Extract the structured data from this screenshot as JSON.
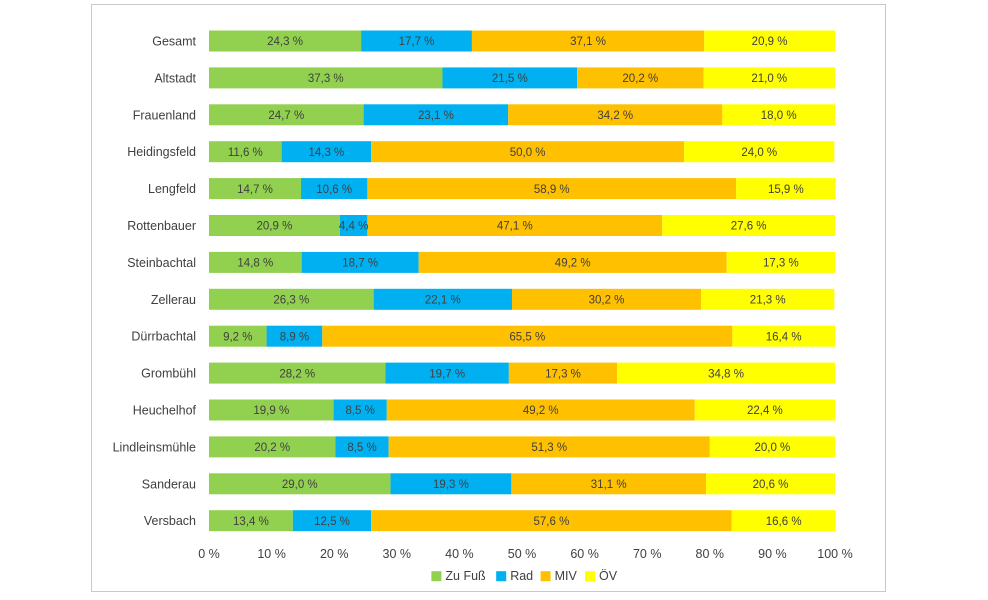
{
  "chart_data": {
    "type": "bar",
    "orientation": "horizontal",
    "stacked": "percent",
    "categories": [
      "Gesamt",
      "Altstadt",
      "Frauenland",
      "Heidingsfeld",
      "Lengfeld",
      "Rottenbauer",
      "Steinbachtal",
      "Zellerau",
      "Dürrbachtal",
      "Grombühl",
      "Heuchelhof",
      "Lindleinsmühle",
      "Sanderau",
      "Versbach"
    ],
    "series": [
      {
        "name": "Zu Fuß",
        "color": "#92d050",
        "values": [
          24.3,
          37.3,
          24.7,
          11.6,
          14.7,
          20.9,
          14.8,
          26.3,
          9.2,
          28.2,
          19.9,
          20.2,
          29.0,
          13.4
        ],
        "labels": [
          "24,3 %",
          "37,3 %",
          "24,7 %",
          "11,6 %",
          "14,7 %",
          "20,9 %",
          "14,8 %",
          "26,3 %",
          "9,2 %",
          "28,2 %",
          "19,9 %",
          "20,2 %",
          "29,0 %",
          "13,4 %"
        ]
      },
      {
        "name": "Rad",
        "color": "#00b0f0",
        "values": [
          17.7,
          21.5,
          23.1,
          14.3,
          10.6,
          4.4,
          18.7,
          22.1,
          8.9,
          19.7,
          8.5,
          8.5,
          19.3,
          12.5
        ],
        "labels": [
          "17,7 %",
          "21,5 %",
          "23,1 %",
          "14,3 %",
          "10,6 %",
          "4,4 %",
          "18,7 %",
          "22,1 %",
          "8,9 %",
          "19,7 %",
          "8,5 %",
          "8,5 %",
          "19,3 %",
          "12,5 %"
        ]
      },
      {
        "name": "MIV",
        "color": "#ffc000",
        "values": [
          37.1,
          20.2,
          34.2,
          50.0,
          58.9,
          47.1,
          49.2,
          30.2,
          65.5,
          17.3,
          49.2,
          51.3,
          31.1,
          57.6
        ],
        "labels": [
          "37,1 %",
          "20,2 %",
          "34,2 %",
          "50,0 %",
          "58,9 %",
          "47,1 %",
          "49,2 %",
          "30,2 %",
          "65,5 %",
          "17,3 %",
          "49,2 %",
          "51,3 %",
          "31,1 %",
          "57,6 %"
        ]
      },
      {
        "name": "ÖV",
        "color": "#ffff00",
        "values": [
          20.9,
          21.0,
          18.0,
          24.0,
          15.9,
          27.6,
          17.3,
          21.3,
          16.4,
          34.8,
          22.4,
          20.0,
          20.6,
          16.6
        ],
        "labels": [
          "20,9 %",
          "21,0 %",
          "18,0 %",
          "24,0 %",
          "15,9 %",
          "27,6 %",
          "17,3 %",
          "21,3 %",
          "16,4 %",
          "34,8 %",
          "22,4 %",
          "20,0 %",
          "20,6 %",
          "16,6 %"
        ]
      }
    ],
    "xlim": [
      0,
      100
    ],
    "x_ticks": [
      "0 %",
      "10 %",
      "20 %",
      "30 %",
      "40 %",
      "50 %",
      "60 %",
      "70 %",
      "80 %",
      "90 %",
      "100 %"
    ],
    "legend_position": "bottom",
    "grid": false
  }
}
